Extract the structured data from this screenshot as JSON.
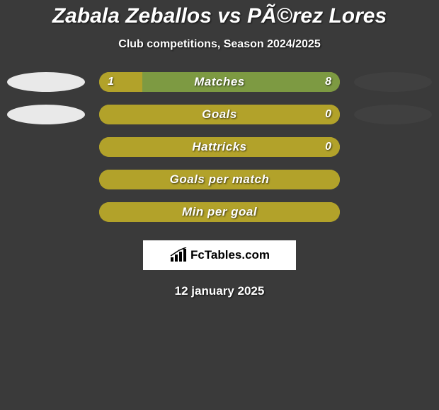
{
  "title": "Zabala Zeballos vs PÃ©rez Lores",
  "subtitle": "Club competitions, Season 2024/2025",
  "date": "12 january 2025",
  "logo_text": "FcTables.com",
  "colors": {
    "left_ellipse": "#e9e9e9",
    "right_ellipse": "#404040",
    "bar_left_fill": "#b2a22a",
    "bar_right_fill": "#7d9a42",
    "bar_empty": "#a39628"
  },
  "rows": [
    {
      "label": "Matches",
      "left_value": "1",
      "right_value": "8",
      "show_ellipses": true,
      "left_pct": 18,
      "right_pct": 82,
      "show_values": true
    },
    {
      "label": "Goals",
      "left_value": "",
      "right_value": "0",
      "show_ellipses": true,
      "left_pct": 100,
      "right_pct": 0,
      "show_values": true
    },
    {
      "label": "Hattricks",
      "left_value": "",
      "right_value": "0",
      "show_ellipses": false,
      "left_pct": 100,
      "right_pct": 0,
      "show_values": true
    },
    {
      "label": "Goals per match",
      "left_value": "",
      "right_value": "",
      "show_ellipses": false,
      "left_pct": 100,
      "right_pct": 0,
      "show_values": false
    },
    {
      "label": "Min per goal",
      "left_value": "",
      "right_value": "",
      "show_ellipses": false,
      "left_pct": 100,
      "right_pct": 0,
      "show_values": false
    }
  ]
}
